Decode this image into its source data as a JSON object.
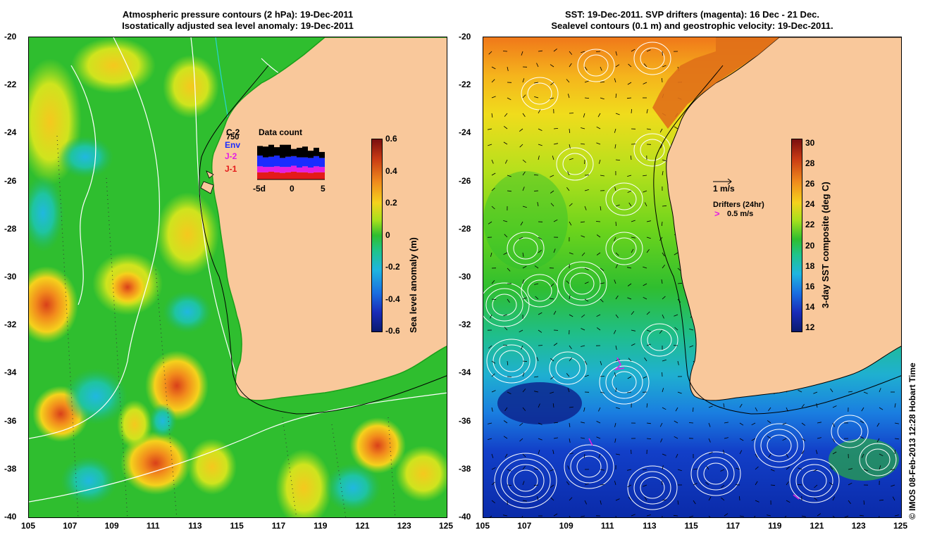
{
  "left_panel": {
    "title_line1": "Atmospheric pressure contours (2 hPa): 19-Dec-2011",
    "title_line2": "Isostatically adjusted sea level anomaly: 19-Dec-2011",
    "colorbar_label": "Sea level anomaly (m)",
    "colorbar_ticks": [
      "0.6",
      "0.4",
      "0.2",
      "0",
      "-0.2",
      "-0.4",
      "-0.6"
    ],
    "inset_title": "Data count",
    "inset_value": "750",
    "inset_satellites": [
      "C-2",
      "Env",
      "J-2",
      "J-1"
    ],
    "inset_x_ticks": [
      "-5d",
      "0",
      "5"
    ]
  },
  "right_panel": {
    "title_line1": "SST: 19-Dec-2011. SVP drifters (magenta): 16 Dec - 21 Dec.",
    "title_line2": "Sealevel contours (0.1 m) and geostrophic velocity: 19-Dec-2011.",
    "colorbar_label": "3-day SST composite (deg C)",
    "colorbar_ticks": [
      "30",
      "28",
      "26",
      "24",
      "22",
      "20",
      "18",
      "16",
      "14",
      "12"
    ],
    "velocity_legend": "1 m/s",
    "drifter_legend_title": "Drifters (24hr)",
    "drifter_legend_speed": "0.5 m/s"
  },
  "axes": {
    "lat_ticks": [
      "-20",
      "-22",
      "-24",
      "-26",
      "-28",
      "-30",
      "-32",
      "-34",
      "-36",
      "-38",
      "-40"
    ],
    "lon_ticks": [
      "105",
      "107",
      "109",
      "111",
      "113",
      "115",
      "117",
      "119",
      "121",
      "123",
      "125"
    ]
  },
  "credit": "© IMOS 08-Feb-2013 12:28 Hobart Time",
  "colors": {
    "land": "#f9c89b",
    "ocean_green": "#2fbe2f",
    "anomaly_high": "#e46414",
    "anomaly_low": "#29b0d6",
    "sst_warm": "#f06a14",
    "sst_cool": "#0b2fb8",
    "drifter": "#e31ee3"
  }
}
